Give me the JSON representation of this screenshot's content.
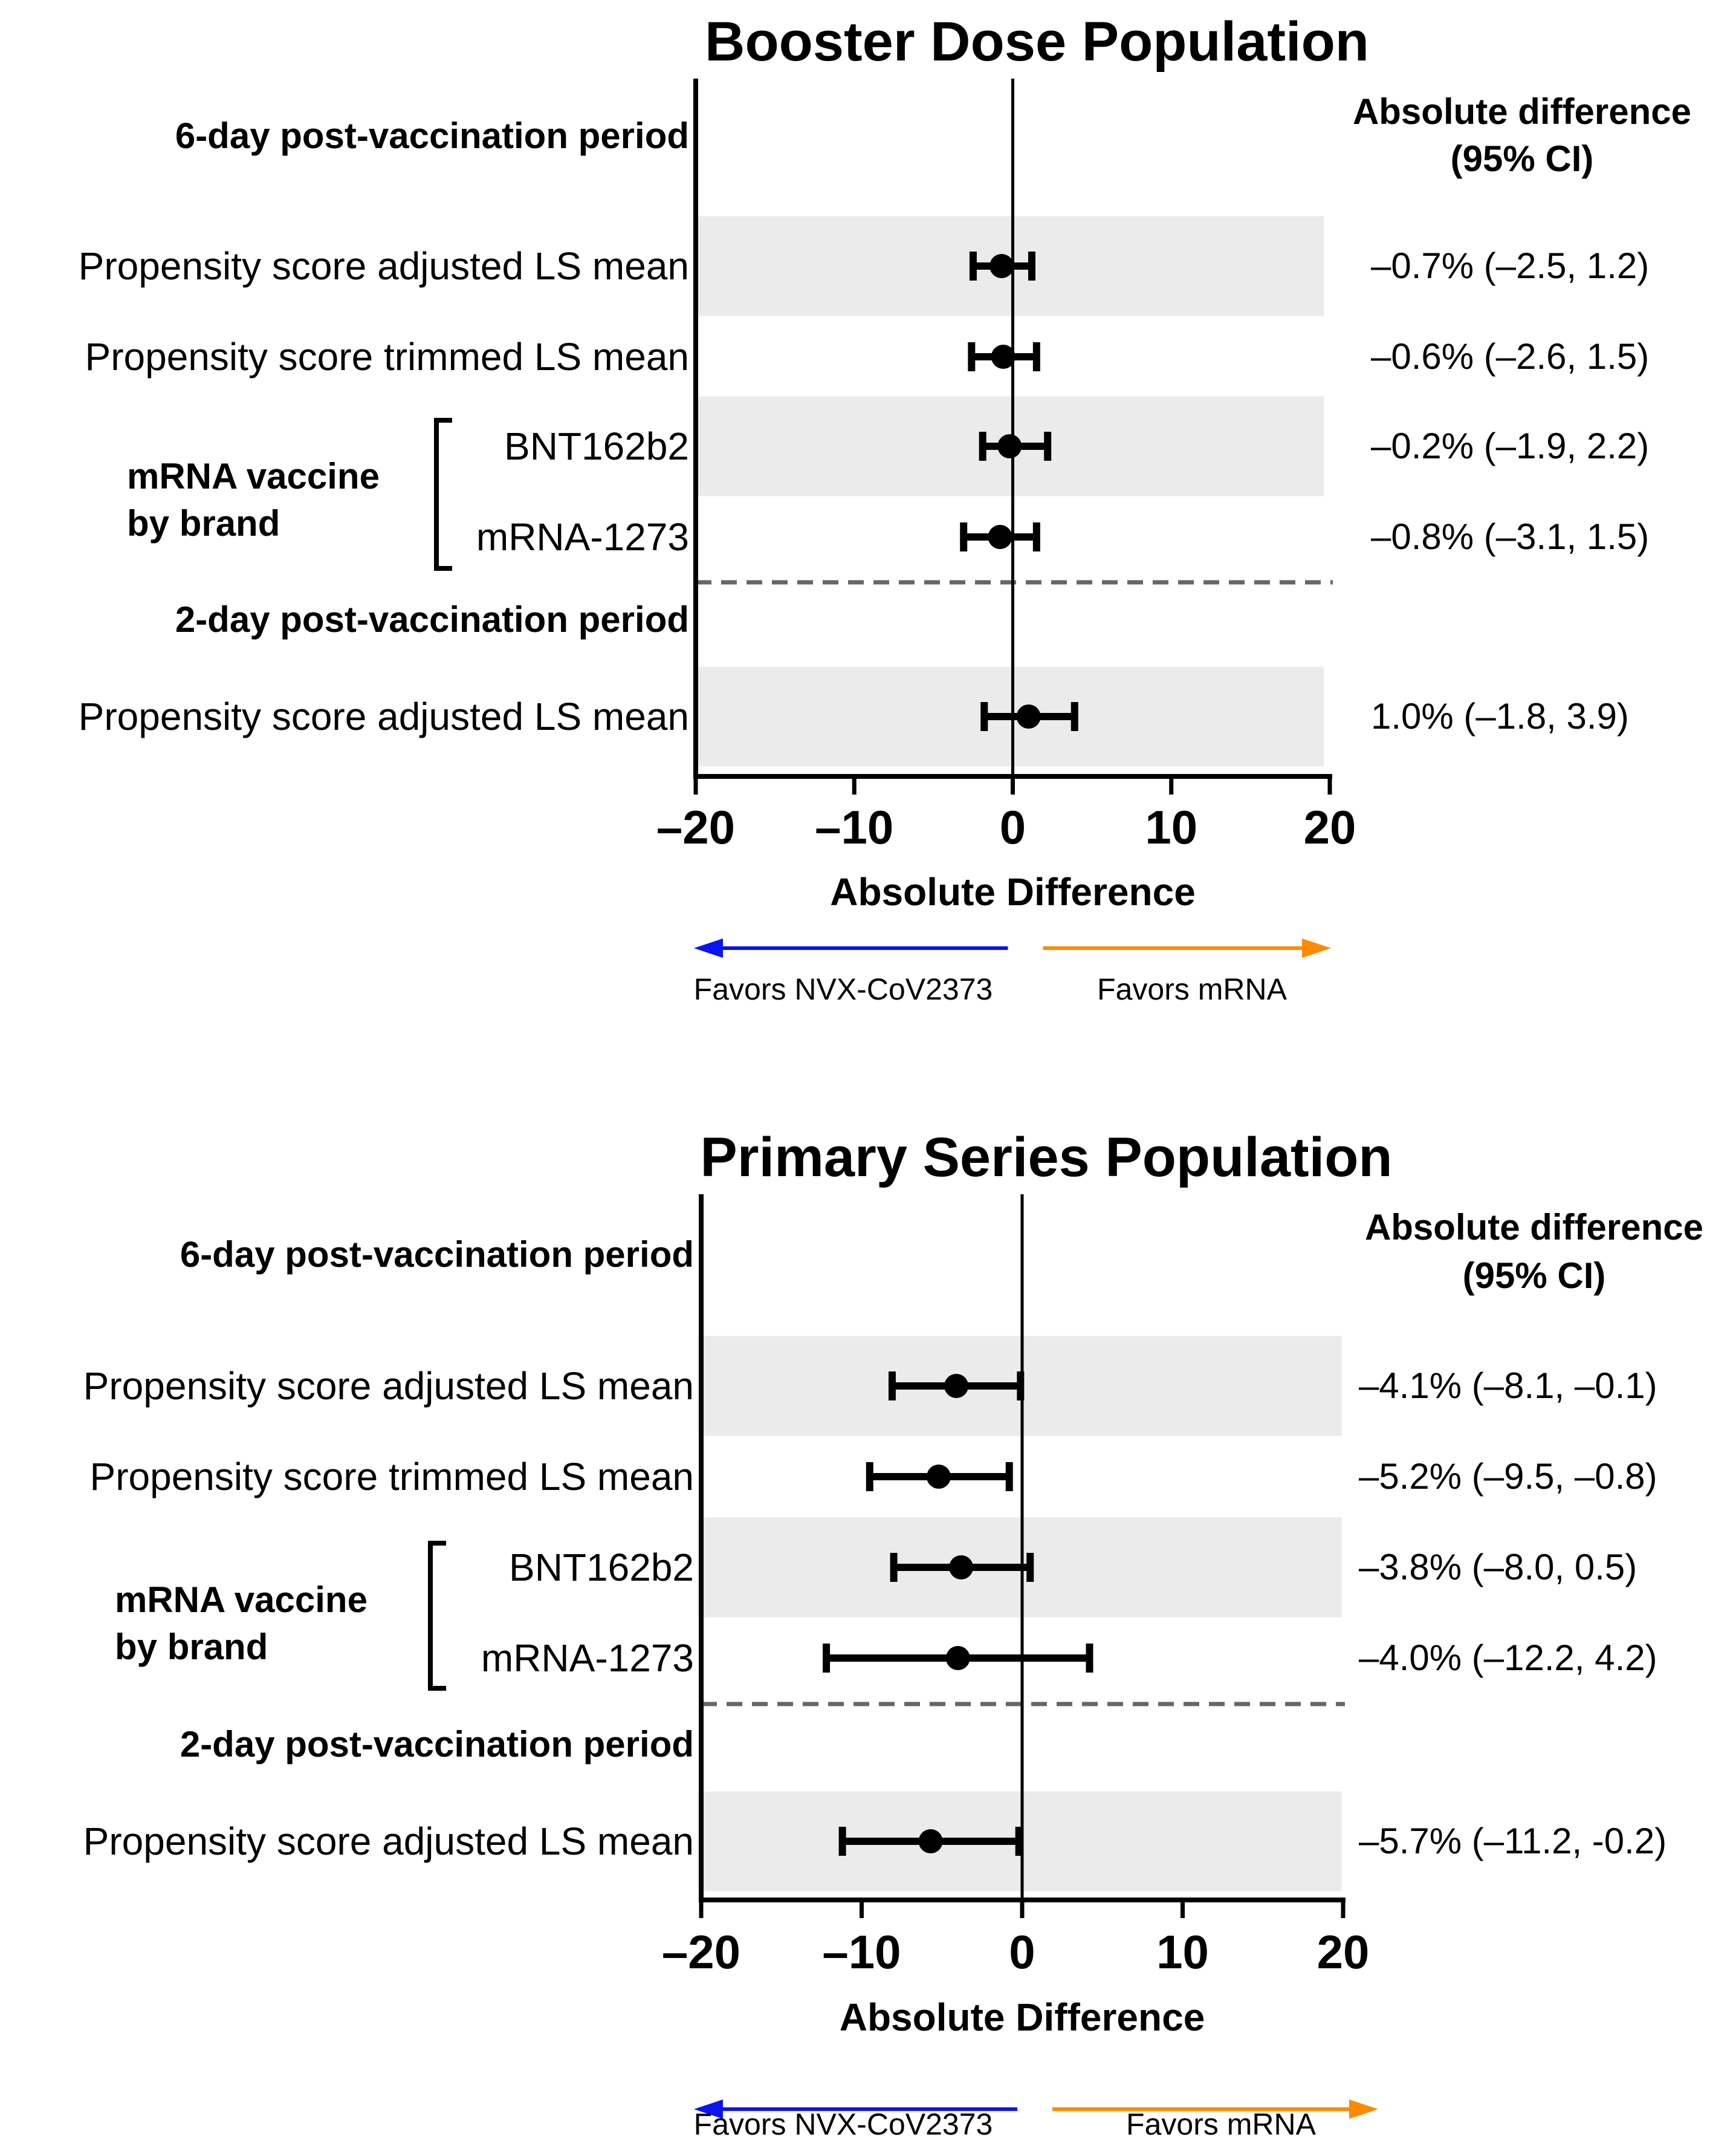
{
  "chart_data": [
    {
      "type": "forest",
      "title": "Booster Dose Population",
      "column_header": [
        "Absolute difference",
        "(95% CI)"
      ],
      "xlabel": "Absolute Difference",
      "xlim": [
        -20,
        20
      ],
      "xticks": [
        -20,
        -10,
        0,
        10,
        20
      ],
      "tick_labels": [
        "–20",
        "–10",
        "0",
        "10",
        "20"
      ],
      "favors_left": "Favors NVX-CoV2373",
      "favors_right": "Favors mRNA",
      "favors_left_color": "#0a14f0",
      "favors_right_color": "#ff8a00",
      "band_color": "#ebebeb",
      "sections": [
        {
          "label": "6-day post-vaccination period",
          "rows": [
            {
              "label": "Propensity score adjusted LS mean",
              "estimate": -0.7,
              "lower": -2.5,
              "upper": 1.2,
              "shaded": true,
              "value_text": "–0.7%  (–2.5, 1.2)"
            },
            {
              "label": "Propensity score trimmed LS mean",
              "estimate": -0.6,
              "lower": -2.6,
              "upper": 1.5,
              "shaded": false,
              "value_text": "–0.6%  (–2.6, 1.5)"
            },
            {
              "label": "BNT162b2",
              "estimate": -0.2,
              "lower": -1.9,
              "upper": 2.2,
              "shaded": true,
              "value_text": "–0.2%  (–1.9, 2.2)"
            },
            {
              "label": "mRNA-1273",
              "estimate": -0.8,
              "lower": -3.1,
              "upper": 1.5,
              "shaded": false,
              "value_text": "–0.8%  (–3.1, 1.5)"
            }
          ]
        },
        {
          "label": "2-day post-vaccination period",
          "rows": [
            {
              "label": "Propensity score adjusted LS mean",
              "estimate": 1.0,
              "lower": -1.8,
              "upper": 3.9,
              "shaded": true,
              "value_text": "1.0%  (–1.8, 3.9)"
            }
          ]
        }
      ],
      "group_bracket": {
        "label": [
          "mRNA vaccine",
          "by brand"
        ],
        "rows": [
          "BNT162b2",
          "mRNA-1273"
        ]
      }
    },
    {
      "type": "forest",
      "title": "Primary Series Population",
      "column_header": [
        "Absolute difference",
        "(95% CI)"
      ],
      "xlabel": "Absolute Difference",
      "xlim": [
        -20,
        20
      ],
      "xticks": [
        -20,
        -10,
        0,
        10,
        20
      ],
      "tick_labels": [
        "–20",
        "–10",
        "0",
        "10",
        "20"
      ],
      "favors_left": "Favors NVX-CoV2373",
      "favors_right": "Favors mRNA",
      "favors_left_color": "#0a14f0",
      "favors_right_color": "#ff8a00",
      "band_color": "#ebebeb",
      "sections": [
        {
          "label": "6-day post-vaccination period",
          "rows": [
            {
              "label": "Propensity score adjusted LS mean",
              "estimate": -4.1,
              "lower": -8.1,
              "upper": -0.1,
              "shaded": true,
              "value_text": "–4.1%  (–8.1, –0.1)"
            },
            {
              "label": "Propensity score trimmed LS mean",
              "estimate": -5.2,
              "lower": -9.5,
              "upper": -0.8,
              "shaded": false,
              "value_text": "–5.2%  (–9.5, –0.8)"
            },
            {
              "label": "BNT162b2",
              "estimate": -3.8,
              "lower": -8.0,
              "upper": 0.5,
              "shaded": true,
              "value_text": "–3.8%  (–8.0, 0.5)"
            },
            {
              "label": "mRNA-1273",
              "estimate": -4.0,
              "lower": -12.2,
              "upper": 4.2,
              "shaded": false,
              "value_text": "–4.0%  (–12.2, 4.2)"
            }
          ]
        },
        {
          "label": "2-day post-vaccination period",
          "rows": [
            {
              "label": "Propensity score adjusted LS mean",
              "estimate": -5.7,
              "lower": -11.2,
              "upper": -0.2,
              "shaded": true,
              "value_text": "–5.7%  (–11.2, -0.2)"
            }
          ]
        }
      ],
      "group_bracket": {
        "label": [
          "mRNA vaccine",
          "by brand"
        ],
        "rows": [
          "BNT162b2",
          "mRNA-1273"
        ]
      }
    }
  ]
}
